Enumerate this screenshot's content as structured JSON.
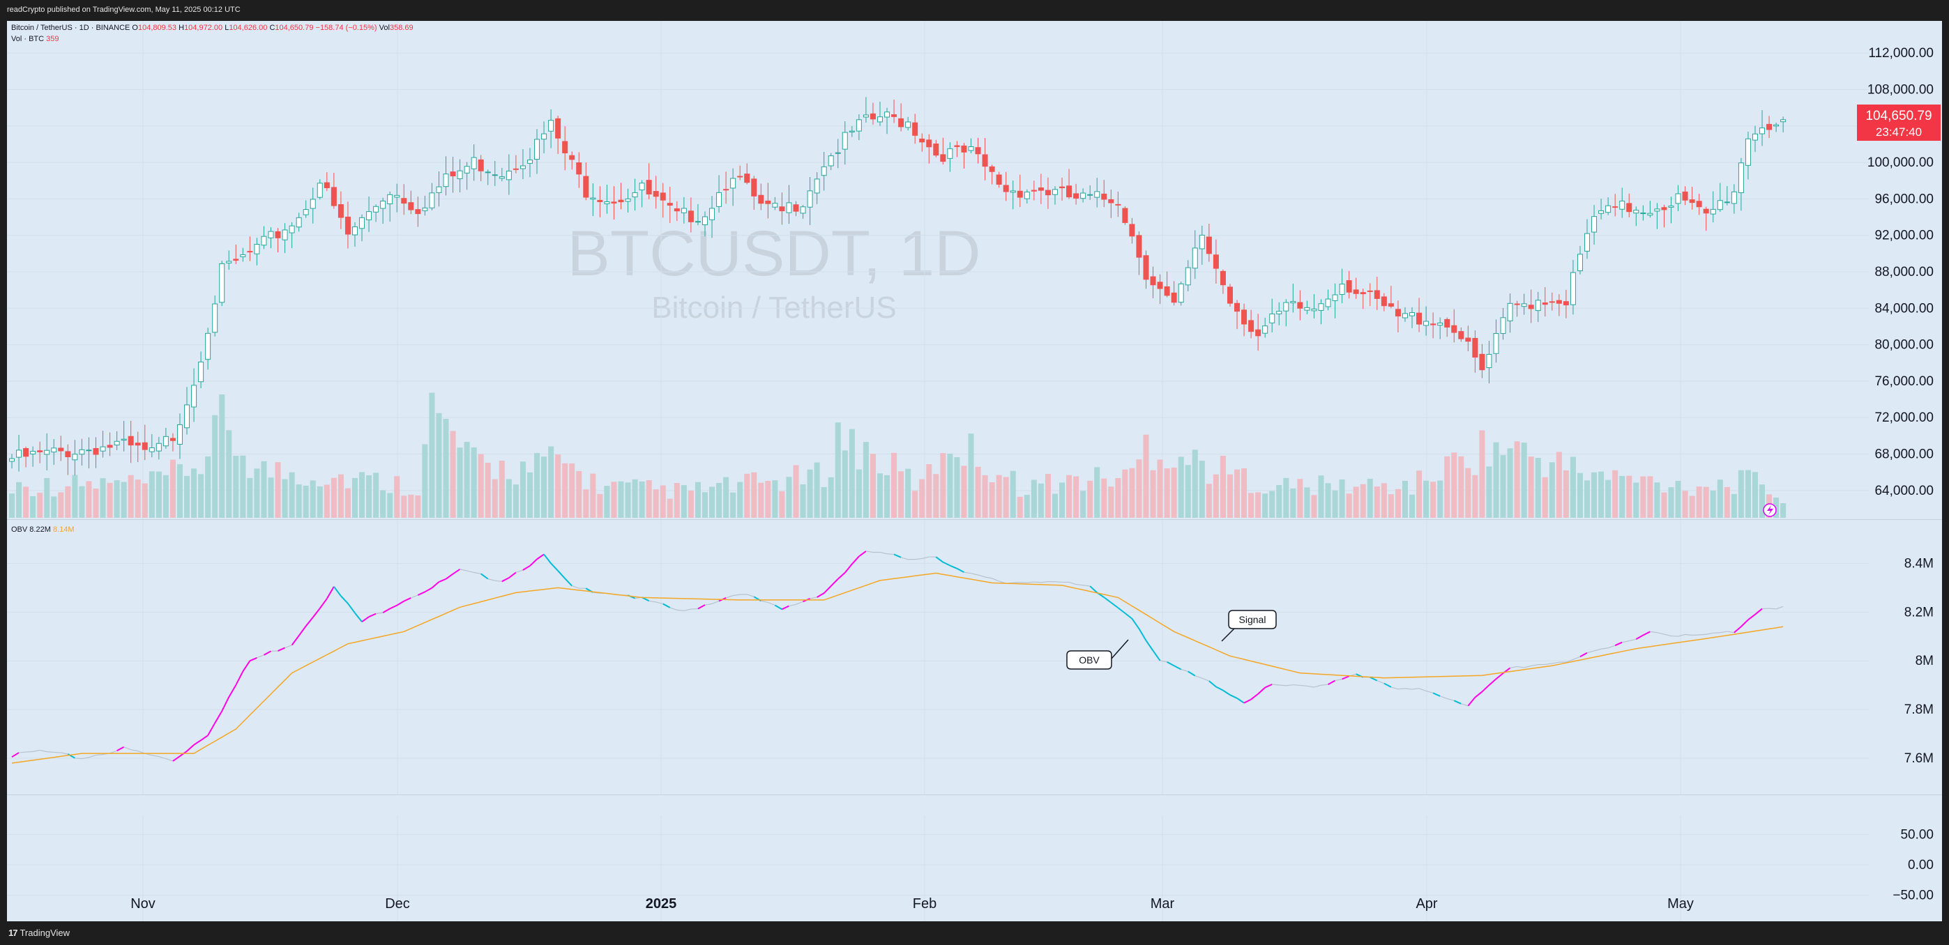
{
  "header": {
    "publisher_line": "readCrypto published on TradingView.com, May 11, 2025 00:12 UTC"
  },
  "legend": {
    "symbol": "Bitcoin / TetherUS · 1D · BINANCE",
    "open_label": "O",
    "open": "104,809.53",
    "high_label": "H",
    "high": "104,972.00",
    "low_label": "L",
    "low": "104,626.00",
    "close_label": "C",
    "close": "104,650.79",
    "change": "−158.74 (−0.15%)",
    "vol_label": "Vol",
    "vol_value": "358.69",
    "vol_line_label": "Vol · BTC",
    "vol_line_value": "359",
    "obv_label": "OBV",
    "obv_value": "8.22M",
    "obv_signal_value": "8.14M"
  },
  "watermark": {
    "symbol": "BTCUSDT, 1D",
    "name": "Bitcoin / TetherUS"
  },
  "price_badge": {
    "price": "104,650.79",
    "countdown": "23:47:40"
  },
  "annotations": {
    "obv_callout": "OBV",
    "signal_callout": "Signal"
  },
  "footer": {
    "brand": "TradingView"
  },
  "colors": {
    "up": "#26a69a",
    "down": "#ef5350",
    "obv_up": "#00bcd4",
    "obv_down": "#ff00e6",
    "signal": "#f5a623",
    "background": "#dde9f5"
  },
  "chart_data": [
    {
      "type": "candlestick",
      "title": "BTCUSDT, 1D",
      "x_labels": [
        "Nov",
        "Dec",
        "2025",
        "Feb",
        "Mar",
        "Apr",
        "May"
      ],
      "y_ticks": [
        "112,000.00",
        "108,000.00",
        "104,000.00",
        "100,000.00",
        "96,000.00",
        "92,000.00",
        "88,000.00",
        "84,000.00",
        "80,000.00",
        "76,000.00",
        "72,000.00",
        "68,000.00",
        "64,000.00"
      ],
      "ylim": [
        62000,
        114000
      ],
      "close_keypoints": [
        [
          0,
          67500
        ],
        [
          10,
          68500
        ],
        [
          15,
          69000
        ],
        [
          20,
          68000
        ],
        [
          23,
          70000
        ],
        [
          26,
          76000
        ],
        [
          30,
          88000
        ],
        [
          36,
          91000
        ],
        [
          41,
          94000
        ],
        [
          44,
          98000
        ],
        [
          48,
          92000
        ],
        [
          54,
          97000
        ],
        [
          58,
          95000
        ],
        [
          62,
          98000
        ],
        [
          66,
          100000
        ],
        [
          70,
          99000
        ],
        [
          74,
          101000
        ],
        [
          77,
          104000
        ],
        [
          79,
          101000
        ],
        [
          82,
          97000
        ],
        [
          86,
          96000
        ],
        [
          90,
          97000
        ],
        [
          95,
          94000
        ],
        [
          99,
          94500
        ],
        [
          103,
          99000
        ],
        [
          107,
          95000
        ],
        [
          110,
          94500
        ],
        [
          113,
          96000
        ],
        [
          116,
          100000
        ],
        [
          121,
          104000
        ],
        [
          124,
          105000
        ],
        [
          128,
          104500
        ],
        [
          132,
          101000
        ],
        [
          137,
          101000
        ],
        [
          142,
          97000
        ],
        [
          147,
          97000
        ],
        [
          152,
          96000
        ],
        [
          158,
          96000
        ],
        [
          162,
          88000
        ],
        [
          166,
          84000
        ],
        [
          170,
          92000
        ],
        [
          174,
          85000
        ],
        [
          178,
          81000
        ],
        [
          182,
          84000
        ],
        [
          186,
          84000
        ],
        [
          190,
          87000
        ],
        [
          194,
          85000
        ],
        [
          198,
          83000
        ],
        [
          202,
          83000
        ],
        [
          206,
          82000
        ],
        [
          210,
          77000
        ],
        [
          214,
          84000
        ],
        [
          218,
          85000
        ],
        [
          222,
          85000
        ],
        [
          226,
          94000
        ],
        [
          230,
          95000
        ],
        [
          234,
          95000
        ],
        [
          238,
          96000
        ],
        [
          242,
          94000
        ],
        [
          246,
          97000
        ],
        [
          248,
          103000
        ],
        [
          250,
          104000
        ],
        [
          253,
          104650
        ]
      ],
      "volume_ylim": [
        0,
        250
      ],
      "volume_keypoints": [
        [
          0,
          60
        ],
        [
          20,
          65
        ],
        [
          28,
          110
        ],
        [
          30,
          180
        ],
        [
          35,
          90
        ],
        [
          45,
          80
        ],
        [
          58,
          60
        ],
        [
          60,
          200
        ],
        [
          66,
          100
        ],
        [
          74,
          90
        ],
        [
          78,
          110
        ],
        [
          84,
          60
        ],
        [
          96,
          50
        ],
        [
          103,
          60
        ],
        [
          116,
          80
        ],
        [
          118,
          155
        ],
        [
          130,
          60
        ],
        [
          134,
          150
        ],
        [
          144,
          60
        ],
        [
          160,
          80
        ],
        [
          162,
          140
        ],
        [
          170,
          100
        ],
        [
          180,
          60
        ],
        [
          200,
          60
        ],
        [
          210,
          130
        ],
        [
          214,
          130
        ],
        [
          226,
          80
        ],
        [
          240,
          60
        ],
        [
          250,
          70
        ],
        [
          253,
          30
        ]
      ]
    },
    {
      "type": "line",
      "series": [
        {
          "name": "OBV",
          "values_note": "",
          "keypoints": [
            [
              0,
              7.61
            ],
            [
              4,
              7.63
            ],
            [
              10,
              7.6
            ],
            [
              16,
              7.64
            ],
            [
              23,
              7.59
            ],
            [
              28,
              7.7
            ],
            [
              34,
              8.0
            ],
            [
              40,
              8.07
            ],
            [
              46,
              8.3
            ],
            [
              50,
              8.16
            ],
            [
              56,
              8.25
            ],
            [
              60,
              8.3
            ],
            [
              64,
              8.37
            ],
            [
              70,
              8.33
            ],
            [
              76,
              8.43
            ],
            [
              80,
              8.3
            ],
            [
              88,
              8.27
            ],
            [
              96,
              8.2
            ],
            [
              104,
              8.28
            ],
            [
              110,
              8.21
            ],
            [
              116,
              8.28
            ],
            [
              122,
              8.45
            ],
            [
              128,
              8.42
            ],
            [
              132,
              8.43
            ],
            [
              136,
              8.36
            ],
            [
              142,
              8.32
            ],
            [
              148,
              8.33
            ],
            [
              154,
              8.3
            ],
            [
              160,
              8.18
            ],
            [
              164,
              8.0
            ],
            [
              168,
              7.95
            ],
            [
              172,
              7.9
            ],
            [
              176,
              7.83
            ],
            [
              180,
              7.9
            ],
            [
              186,
              7.89
            ],
            [
              192,
              7.95
            ],
            [
              198,
              7.88
            ],
            [
              202,
              7.88
            ],
            [
              208,
              7.82
            ],
            [
              214,
              7.97
            ],
            [
              222,
              8.0
            ],
            [
              228,
              8.05
            ],
            [
              234,
              8.12
            ],
            [
              240,
              8.1
            ],
            [
              246,
              8.12
            ],
            [
              250,
              8.22
            ],
            [
              253,
              8.22
            ]
          ]
        },
        {
          "name": "Signal",
          "keypoints": [
            [
              0,
              7.58
            ],
            [
              10,
              7.62
            ],
            [
              20,
              7.62
            ],
            [
              26,
              7.62
            ],
            [
              32,
              7.72
            ],
            [
              40,
              7.95
            ],
            [
              48,
              8.07
            ],
            [
              56,
              8.12
            ],
            [
              64,
              8.22
            ],
            [
              72,
              8.28
            ],
            [
              78,
              8.3
            ],
            [
              90,
              8.26
            ],
            [
              104,
              8.25
            ],
            [
              116,
              8.25
            ],
            [
              124,
              8.33
            ],
            [
              132,
              8.36
            ],
            [
              140,
              8.32
            ],
            [
              150,
              8.31
            ],
            [
              158,
              8.26
            ],
            [
              166,
              8.12
            ],
            [
              174,
              8.02
            ],
            [
              184,
              7.95
            ],
            [
              196,
              7.93
            ],
            [
              210,
              7.94
            ],
            [
              220,
              7.98
            ],
            [
              232,
              8.05
            ],
            [
              244,
              8.1
            ],
            [
              253,
              8.14
            ]
          ]
        }
      ],
      "y_ticks": [
        "8.4M",
        "8.2M",
        "8M",
        "7.8M",
        "7.6M"
      ],
      "ylim": [
        7.48,
        8.55
      ]
    },
    {
      "type": "line",
      "y_ticks": [
        "50.00",
        "0.00",
        "−50.00"
      ],
      "ylim": [
        -70,
        70
      ]
    }
  ]
}
